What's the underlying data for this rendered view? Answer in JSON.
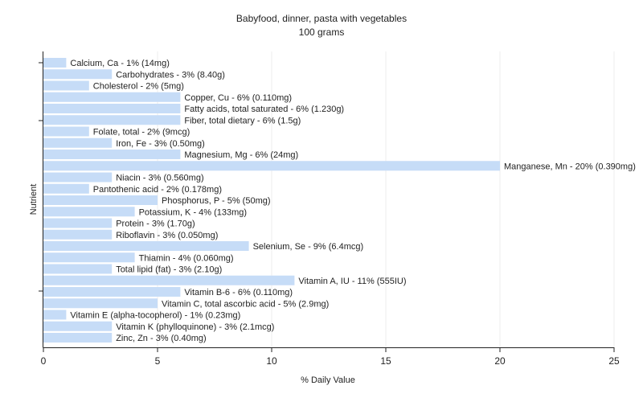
{
  "chart_data": {
    "type": "bar",
    "orientation": "horizontal",
    "title": "Babyfood, dinner, pasta with vegetables",
    "subtitle": "100 grams",
    "xlabel": "% Daily Value",
    "ylabel": "Nutrient",
    "xlim": [
      0,
      25
    ],
    "xticks": [
      0,
      5,
      10,
      15,
      20,
      25
    ],
    "grid": true,
    "bar_color": "#c6dcf7",
    "categories": [
      "Calcium, Ca",
      "Carbohydrates",
      "Cholesterol",
      "Copper, Cu",
      "Fatty acids, total saturated",
      "Fiber, total dietary",
      "Folate, total",
      "Iron, Fe",
      "Magnesium, Mg",
      "Manganese, Mn",
      "Niacin",
      "Pantothenic acid",
      "Phosphorus, P",
      "Potassium, K",
      "Protein",
      "Riboflavin",
      "Selenium, Se",
      "Thiamin",
      "Total lipid (fat)",
      "Vitamin A, IU",
      "Vitamin B-6",
      "Vitamin C, total ascorbic acid",
      "Vitamin E (alpha-tocopherol)",
      "Vitamin K (phylloquinone)",
      "Zinc, Zn"
    ],
    "values": [
      1,
      3,
      2,
      6,
      6,
      6,
      2,
      3,
      6,
      20,
      3,
      2,
      5,
      4,
      3,
      3,
      9,
      4,
      3,
      11,
      6,
      5,
      1,
      3,
      3
    ],
    "labels": [
      "Calcium, Ca - 1% (14mg)",
      "Carbohydrates - 3% (8.40g)",
      "Cholesterol - 2% (5mg)",
      "Copper, Cu - 6% (0.110mg)",
      "Fatty acids, total saturated - 6% (1.230g)",
      "Fiber, total dietary - 6% (1.5g)",
      "Folate, total - 2% (9mcg)",
      "Iron, Fe - 3% (0.50mg)",
      "Magnesium, Mg - 6% (24mg)",
      "Manganese, Mn - 20% (0.390mg)",
      "Niacin - 3% (0.560mg)",
      "Pantothenic acid - 2% (0.178mg)",
      "Phosphorus, P - 5% (50mg)",
      "Potassium, K - 4% (133mg)",
      "Protein - 3% (1.70g)",
      "Riboflavin - 3% (0.050mg)",
      "Selenium, Se - 9% (6.4mcg)",
      "Thiamin - 4% (0.060mg)",
      "Total lipid (fat) - 3% (2.10g)",
      "Vitamin A, IU - 11% (555IU)",
      "Vitamin B-6 - 6% (0.110mg)",
      "Vitamin C, total ascorbic acid - 5% (2.9mg)",
      "Vitamin E (alpha-tocopherol) - 1% (0.23mg)",
      "Vitamin K (phylloquinone) - 3% (2.1mcg)",
      "Zinc, Zn - 3% (0.40mg)"
    ]
  }
}
